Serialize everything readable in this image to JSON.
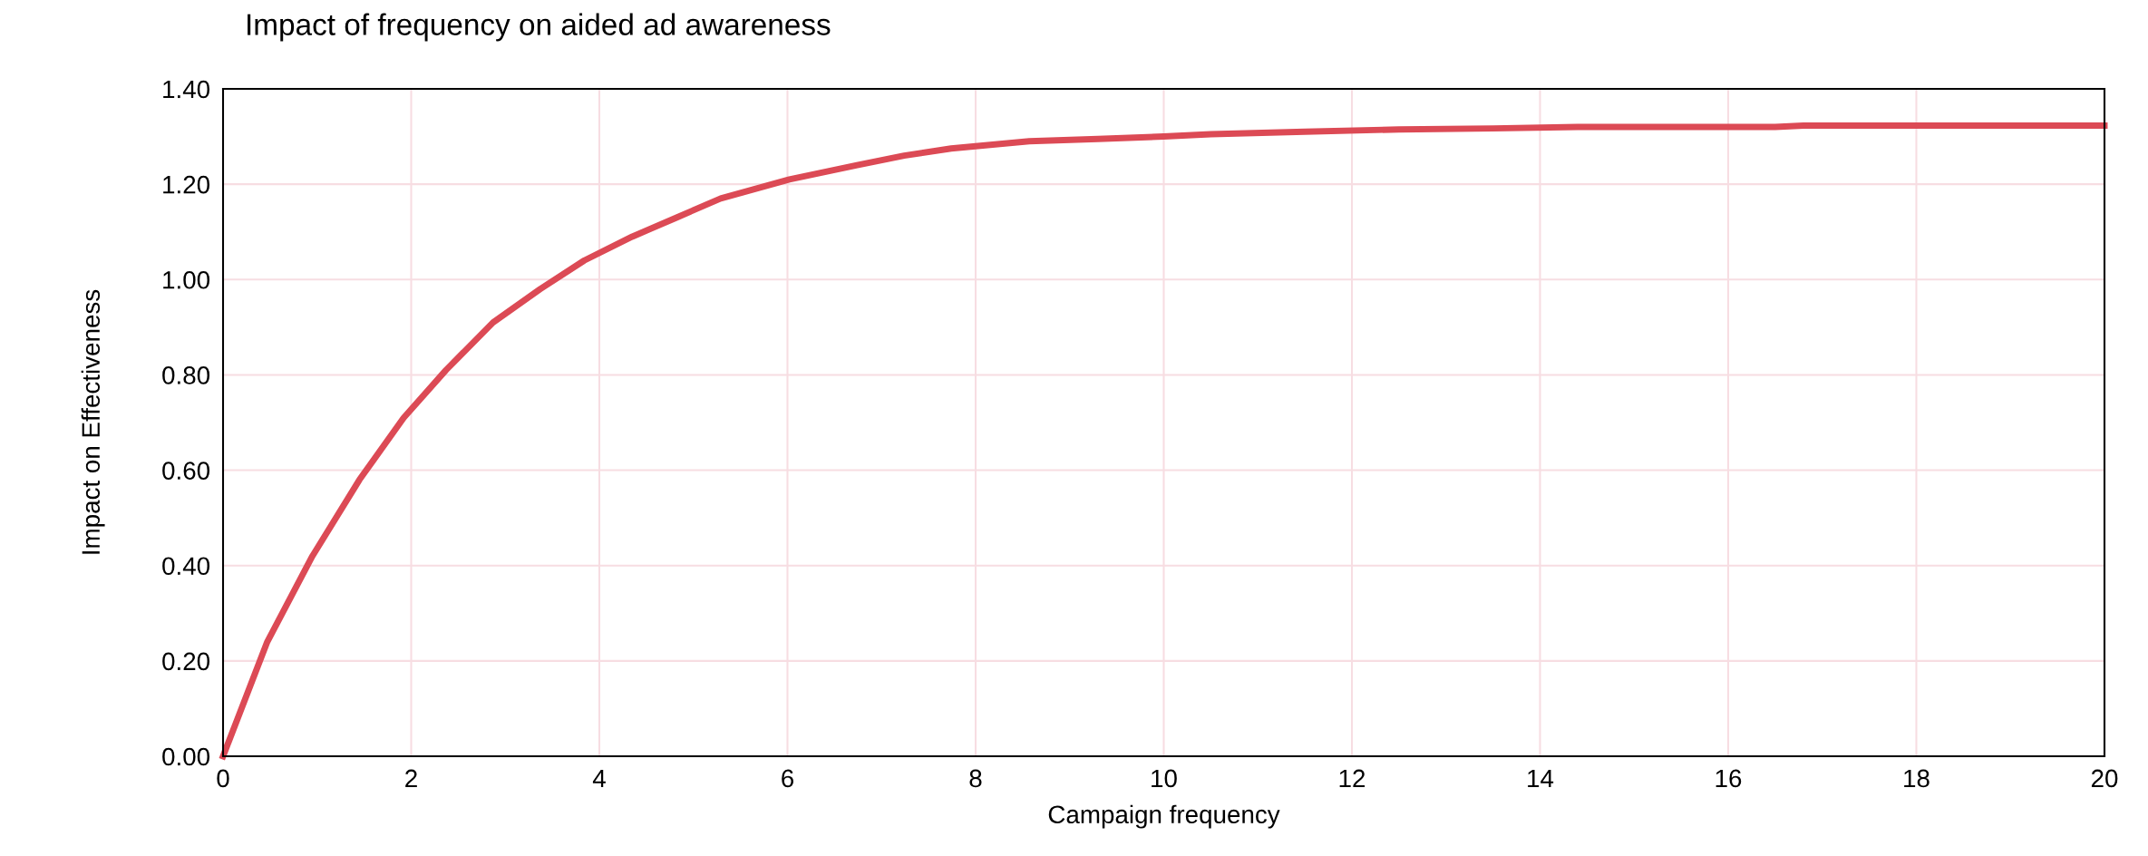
{
  "chart_data": {
    "type": "line",
    "title": "Impact of frequency on aided ad awareness",
    "xlabel": "Campaign frequency",
    "ylabel": "Impact on Effectiveness",
    "x": [
      0,
      0.47,
      0.95,
      1.45,
      1.92,
      2.37,
      2.87,
      3.37,
      3.84,
      4.35,
      4.82,
      5.29,
      6.02,
      6.74,
      7.24,
      7.74,
      8.57,
      9.3,
      10,
      10.5,
      11.5,
      12.5,
      13.5,
      14.4,
      16.5,
      16.8,
      20
    ],
    "series": [
      {
        "color": "#dc4a55",
        "values": [
          0,
          0.24,
          0.42,
          0.58,
          0.71,
          0.81,
          0.91,
          0.98,
          1.04,
          1.09,
          1.13,
          1.17,
          1.21,
          1.24,
          1.26,
          1.275,
          1.29,
          1.295,
          1.3,
          1.305,
          1.31,
          1.315,
          1.317,
          1.32,
          1.32,
          1.323,
          1.323
        ]
      }
    ],
    "xlim": [
      0,
      20
    ],
    "xticks": [
      0,
      2,
      4,
      6,
      8,
      10,
      12,
      14,
      16,
      18,
      20
    ],
    "ylim": [
      0,
      1.4
    ],
    "yticks": [
      {
        "value": 0,
        "label": "0.00"
      },
      {
        "value": 0.2,
        "label": "0.20"
      },
      {
        "value": 0.4,
        "label": "0.40"
      },
      {
        "value": 0.6,
        "label": "0.60"
      },
      {
        "value": 0.8,
        "label": "0.80"
      },
      {
        "value": 1.0,
        "label": "1.00"
      },
      {
        "value": 1.2,
        "label": "1.20"
      },
      {
        "value": 1.4,
        "label": "1.40"
      }
    ],
    "grid": true,
    "marker": "none",
    "line_style": "solid",
    "legend": false
  }
}
